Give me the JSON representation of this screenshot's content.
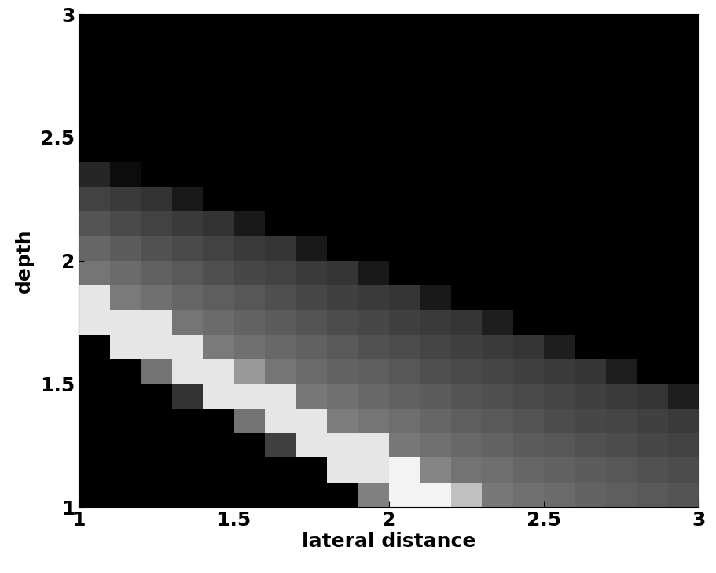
{
  "chart_data": {
    "type": "heatmap",
    "x_label": "lateral distance",
    "y_label": "depth",
    "xlim": [
      1,
      3
    ],
    "ylim": [
      1,
      3
    ],
    "xticks": [
      1,
      1.5,
      2,
      2.5,
      3
    ],
    "yticks": [
      1,
      1.5,
      2,
      2.5,
      3
    ],
    "zlim": [
      0,
      100
    ],
    "cells": [
      [
        0,
        0,
        0,
        0,
        0,
        0,
        0,
        0,
        0,
        50,
        95,
        95,
        75,
        47,
        44,
        42,
        39,
        37,
        35,
        33
      ],
      [
        0,
        0,
        0,
        0,
        0,
        0,
        0,
        0,
        90,
        90,
        95,
        52,
        45,
        43,
        40,
        38,
        36,
        34,
        32,
        30
      ],
      [
        0,
        0,
        0,
        0,
        0,
        0,
        25,
        90,
        90,
        90,
        47,
        44,
        41,
        39,
        36,
        34,
        32,
        30,
        28,
        26
      ],
      [
        0,
        0,
        0,
        0,
        0,
        45,
        90,
        90,
        49,
        46,
        43,
        40,
        37,
        35,
        33,
        30,
        28,
        27,
        25,
        23
      ],
      [
        0,
        0,
        0,
        20,
        90,
        90,
        90,
        47,
        44,
        41,
        38,
        36,
        33,
        31,
        29,
        27,
        25,
        23,
        21,
        12
      ],
      [
        0,
        0,
        45,
        90,
        90,
        60,
        46,
        42,
        39,
        37,
        34,
        31,
        29,
        27,
        25,
        23,
        21,
        12,
        0,
        0
      ],
      [
        0,
        90,
        90,
        90,
        48,
        44,
        41,
        38,
        35,
        32,
        30,
        27,
        25,
        23,
        21,
        12,
        0,
        0,
        0,
        0
      ],
      [
        90,
        90,
        90,
        46,
        42,
        39,
        36,
        33,
        30,
        28,
        25,
        23,
        21,
        12,
        0,
        0,
        0,
        0,
        0,
        0
      ],
      [
        90,
        48,
        44,
        40,
        37,
        34,
        31,
        28,
        25,
        23,
        21,
        10,
        0,
        0,
        0,
        0,
        0,
        0,
        0,
        0
      ],
      [
        46,
        42,
        38,
        35,
        31,
        28,
        26,
        23,
        21,
        10,
        0,
        0,
        0,
        0,
        0,
        0,
        0,
        0,
        0,
        0
      ],
      [
        40,
        36,
        32,
        29,
        26,
        23,
        21,
        10,
        0,
        0,
        0,
        0,
        0,
        0,
        0,
        0,
        0,
        0,
        0,
        0
      ],
      [
        33,
        29,
        26,
        23,
        20,
        10,
        0,
        0,
        0,
        0,
        0,
        0,
        0,
        0,
        0,
        0,
        0,
        0,
        0,
        0
      ],
      [
        26,
        23,
        20,
        10,
        0,
        0,
        0,
        0,
        0,
        0,
        0,
        0,
        0,
        0,
        0,
        0,
        0,
        0,
        0,
        0
      ],
      [
        15,
        5,
        0,
        0,
        0,
        0,
        0,
        0,
        0,
        0,
        0,
        0,
        0,
        0,
        0,
        0,
        0,
        0,
        0,
        0
      ],
      [
        0,
        0,
        0,
        0,
        0,
        0,
        0,
        0,
        0,
        0,
        0,
        0,
        0,
        0,
        0,
        0,
        0,
        0,
        0,
        0
      ],
      [
        0,
        0,
        0,
        0,
        0,
        0,
        0,
        0,
        0,
        0,
        0,
        0,
        0,
        0,
        0,
        0,
        0,
        0,
        0,
        0
      ],
      [
        0,
        0,
        0,
        0,
        0,
        0,
        0,
        0,
        0,
        0,
        0,
        0,
        0,
        0,
        0,
        0,
        0,
        0,
        0,
        0
      ],
      [
        0,
        0,
        0,
        0,
        0,
        0,
        0,
        0,
        0,
        0,
        0,
        0,
        0,
        0,
        0,
        0,
        0,
        0,
        0,
        0
      ],
      [
        0,
        0,
        0,
        0,
        0,
        0,
        0,
        0,
        0,
        0,
        0,
        0,
        0,
        0,
        0,
        0,
        0,
        0,
        0,
        0
      ],
      [
        0,
        0,
        0,
        0,
        0,
        0,
        0,
        0,
        0,
        0,
        0,
        0,
        0,
        0,
        0,
        0,
        0,
        0,
        0,
        0
      ]
    ]
  }
}
